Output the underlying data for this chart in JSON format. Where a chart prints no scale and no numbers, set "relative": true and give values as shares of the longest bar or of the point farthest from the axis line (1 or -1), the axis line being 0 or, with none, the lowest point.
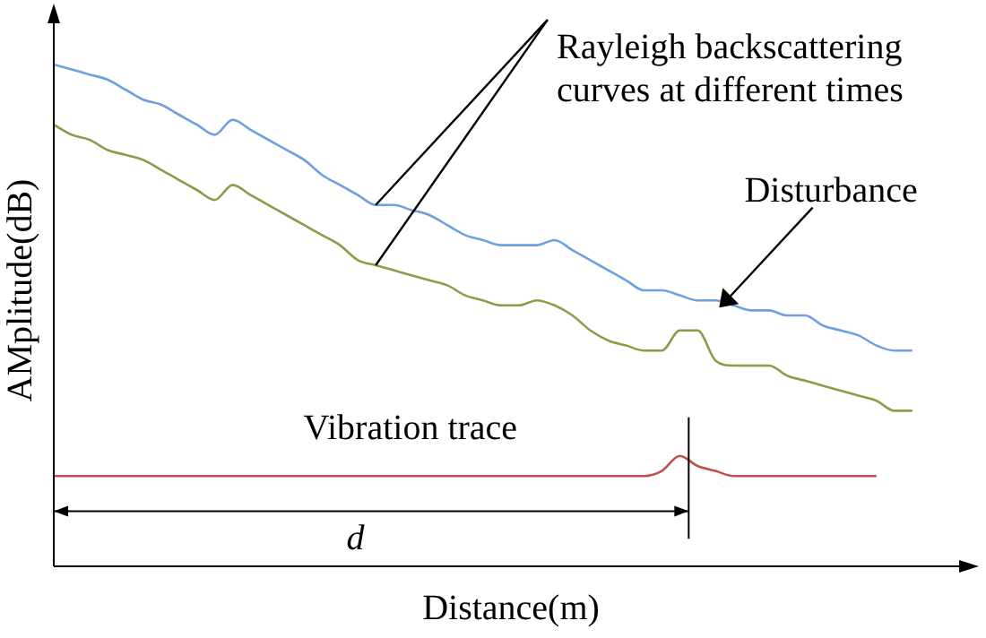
{
  "chart_data": {
    "type": "line",
    "relative": true,
    "xlabel": "Distance(m)",
    "ylabel": "AMplitude(dB)",
    "legend": false,
    "grid": false,
    "marker": "none",
    "line_style": "solid",
    "annotations": [
      "Rayleigh backscattering curves at different times",
      "Disturbance",
      "Vibration trace",
      "d"
    ],
    "categories": [
      null,
      null,
      null,
      null,
      null,
      null,
      null,
      null,
      null,
      null,
      null,
      null,
      null,
      null,
      null,
      null,
      null,
      null,
      null,
      null,
      null,
      null,
      null,
      null,
      null,
      null,
      null,
      null,
      null,
      null,
      null,
      null,
      null,
      null,
      null,
      null,
      null,
      null,
      null,
      null,
      null,
      null,
      null,
      null,
      null,
      null,
      null,
      null,
      null
    ],
    "series": [
      {
        "color": "#6fa0e0",
        "values": [
          1.0,
          0.99,
          0.98,
          0.97,
          0.95,
          0.93,
          0.92,
          0.9,
          0.88,
          0.86,
          0.89,
          0.87,
          0.85,
          0.83,
          0.81,
          0.78,
          0.76,
          0.74,
          0.72,
          0.72,
          0.71,
          0.7,
          0.68,
          0.66,
          0.65,
          0.64,
          0.64,
          0.64,
          0.65,
          0.63,
          0.61,
          0.59,
          0.57,
          0.55,
          0.55,
          0.54,
          0.53,
          0.53,
          0.52,
          0.51,
          0.51,
          0.5,
          0.5,
          0.48,
          0.47,
          0.46,
          0.44,
          0.43,
          0.43
        ]
      },
      {
        "color": "#8a9e4a",
        "values": [
          0.88,
          0.86,
          0.85,
          0.83,
          0.82,
          0.81,
          0.79,
          0.77,
          0.75,
          0.73,
          0.76,
          0.74,
          0.72,
          0.7,
          0.68,
          0.66,
          0.64,
          0.61,
          0.6,
          0.59,
          0.58,
          0.57,
          0.56,
          0.54,
          0.53,
          0.52,
          0.52,
          0.53,
          0.52,
          0.5,
          0.47,
          0.45,
          0.44,
          0.43,
          0.43,
          0.47,
          0.47,
          0.41,
          0.4,
          0.4,
          0.4,
          0.38,
          0.37,
          0.36,
          0.35,
          0.34,
          0.33,
          0.31,
          0.31
        ]
      },
      {
        "color": "#c0504d",
        "values": [
          0.18,
          0.18,
          0.18,
          0.18,
          0.18,
          0.18,
          0.18,
          0.18,
          0.18,
          0.18,
          0.18,
          0.18,
          0.18,
          0.18,
          0.18,
          0.18,
          0.18,
          0.18,
          0.18,
          0.18,
          0.18,
          0.18,
          0.18,
          0.18,
          0.18,
          0.18,
          0.18,
          0.18,
          0.18,
          0.18,
          0.18,
          0.18,
          0.18,
          0.18,
          0.19,
          0.22,
          0.2,
          0.19,
          0.18,
          0.18,
          0.18,
          0.18,
          0.18,
          0.18,
          0.18,
          0.18,
          0.18,
          null,
          null
        ]
      }
    ]
  }
}
